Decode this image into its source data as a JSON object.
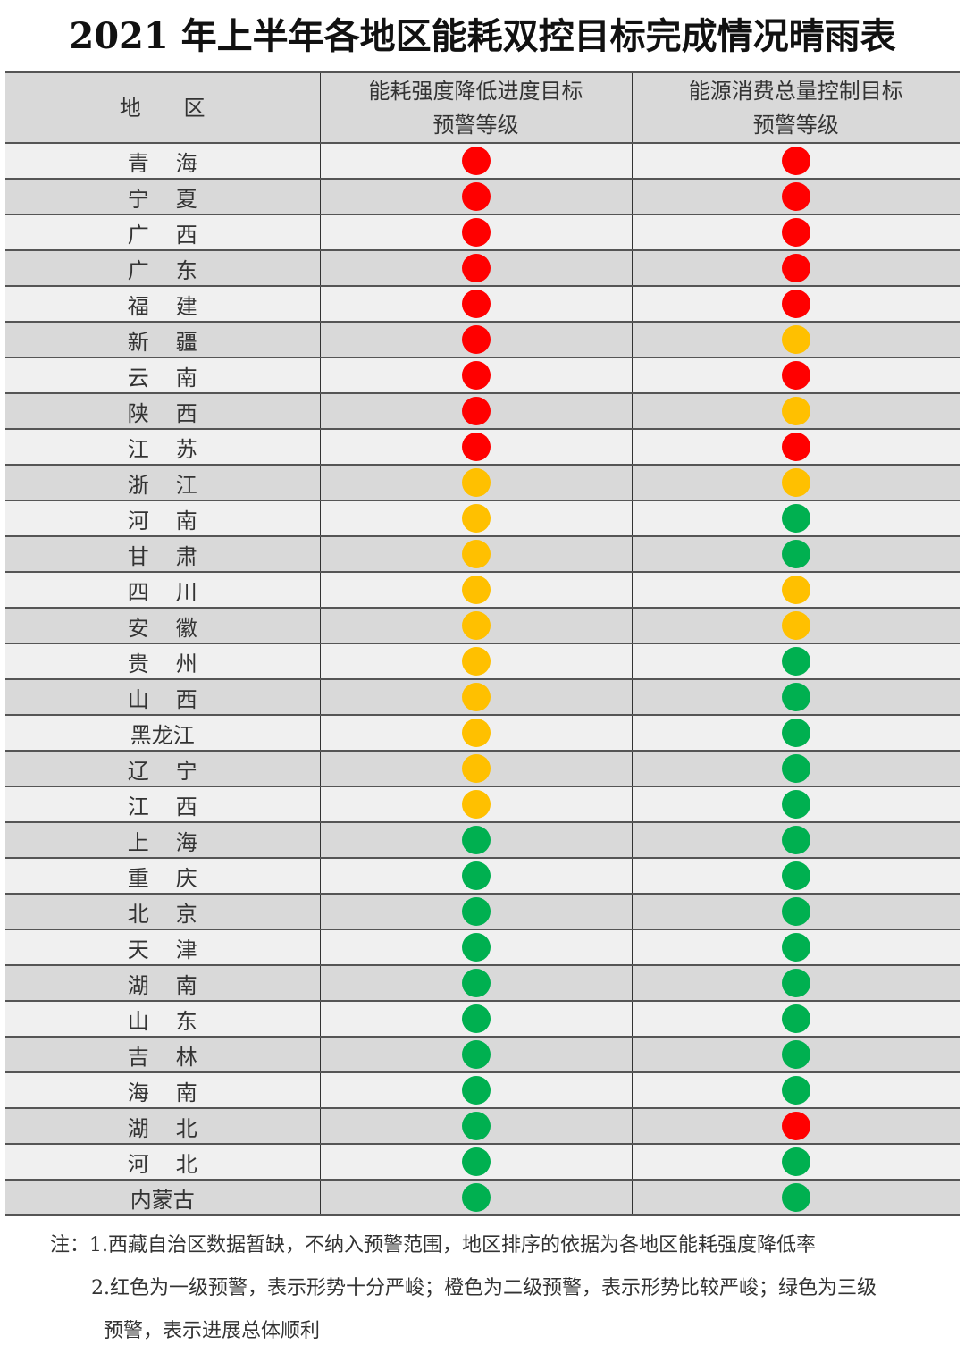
{
  "title": "2021 年上半年各地区能耗双控目标完成情况晴雨表",
  "colors": {
    "red": "#ff0000",
    "orange": "#ffc000",
    "green": "#00b050"
  },
  "table": {
    "headers": {
      "region": "地 区",
      "intensity_line1": "能耗强度降低进度目标",
      "intensity_line2": "预警等级",
      "total_line1": "能源消费总量控制目标",
      "total_line2": "预警等级"
    },
    "rows": [
      {
        "region": "青海",
        "intensity": "red",
        "total": "red"
      },
      {
        "region": "宁夏",
        "intensity": "red",
        "total": "red"
      },
      {
        "region": "广西",
        "intensity": "red",
        "total": "red"
      },
      {
        "region": "广东",
        "intensity": "red",
        "total": "red"
      },
      {
        "region": "福建",
        "intensity": "red",
        "total": "red"
      },
      {
        "region": "新疆",
        "intensity": "red",
        "total": "orange"
      },
      {
        "region": "云南",
        "intensity": "red",
        "total": "red"
      },
      {
        "region": "陕西",
        "intensity": "red",
        "total": "orange"
      },
      {
        "region": "江苏",
        "intensity": "red",
        "total": "red"
      },
      {
        "region": "浙江",
        "intensity": "orange",
        "total": "orange"
      },
      {
        "region": "河南",
        "intensity": "orange",
        "total": "green"
      },
      {
        "region": "甘肃",
        "intensity": "orange",
        "total": "green"
      },
      {
        "region": "四川",
        "intensity": "orange",
        "total": "orange"
      },
      {
        "region": "安徽",
        "intensity": "orange",
        "total": "orange"
      },
      {
        "region": "贵州",
        "intensity": "orange",
        "total": "green"
      },
      {
        "region": "山西",
        "intensity": "orange",
        "total": "green"
      },
      {
        "region": "黑龙江",
        "intensity": "orange",
        "total": "green"
      },
      {
        "region": "辽宁",
        "intensity": "orange",
        "total": "green"
      },
      {
        "region": "江西",
        "intensity": "orange",
        "total": "green"
      },
      {
        "region": "上海",
        "intensity": "green",
        "total": "green"
      },
      {
        "region": "重庆",
        "intensity": "green",
        "total": "green"
      },
      {
        "region": "北京",
        "intensity": "green",
        "total": "green"
      },
      {
        "region": "天津",
        "intensity": "green",
        "total": "green"
      },
      {
        "region": "湖南",
        "intensity": "green",
        "total": "green"
      },
      {
        "region": "山东",
        "intensity": "green",
        "total": "green"
      },
      {
        "region": "吉林",
        "intensity": "green",
        "total": "green"
      },
      {
        "region": "海南",
        "intensity": "green",
        "total": "green"
      },
      {
        "region": "湖北",
        "intensity": "green",
        "total": "red"
      },
      {
        "region": "河北",
        "intensity": "green",
        "total": "green"
      },
      {
        "region": "内蒙古",
        "intensity": "green",
        "total": "green"
      }
    ]
  },
  "notes": {
    "line1": "注：1.西藏自治区数据暂缺，不纳入预警范围，地区排序的依据为各地区能耗强度降低率",
    "line2": "2.红色为一级预警，表示形势十分严峻；橙色为二级预警，表示形势比较严峻；绿色为三级",
    "line3": "预警，表示进展总体顺利"
  }
}
